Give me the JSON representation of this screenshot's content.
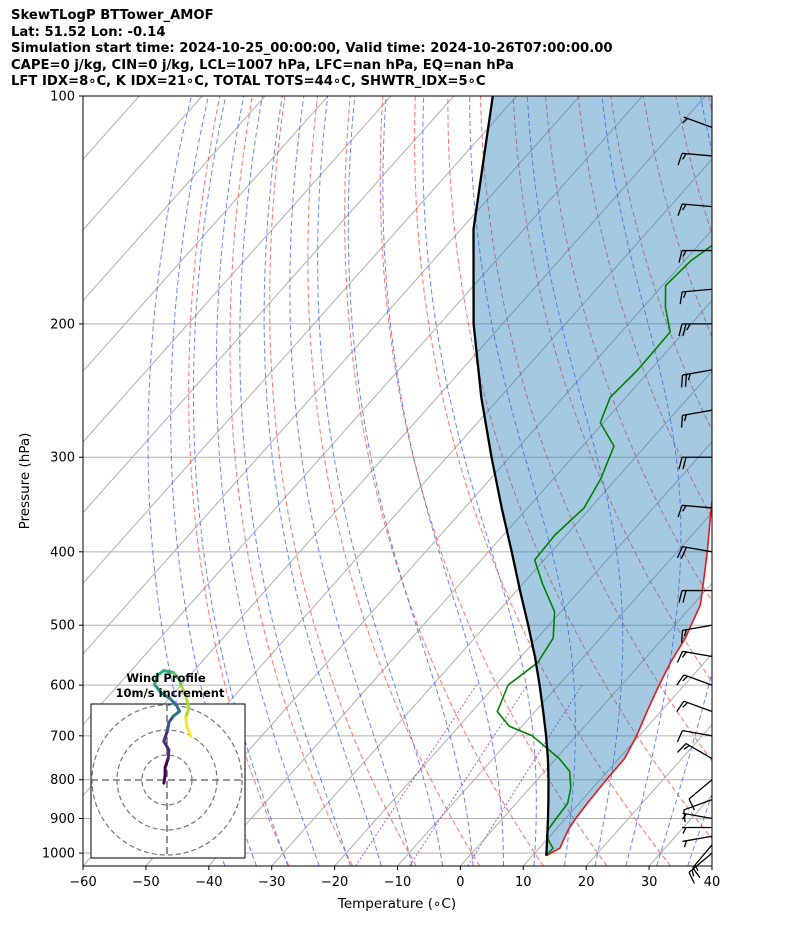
{
  "header": {
    "line1": "SkewTLogP BTTower_AMOF",
    "line2": "Lat: 51.52   Lon: -0.14",
    "line3": "Simulation start time: 2024-10-25_00:00:00, Valid time: 2024-10-26T07:00:00.00",
    "line4": "CAPE=0 j/kg, CIN=0 j/kg, LCL=1007 hPa, LFC=nan hPa, EQ=nan hPa",
    "line5": "LFT IDX=8∘C, K IDX=21∘C, TOTAL TOTS=44∘C, SHWTR_IDX=5∘C"
  },
  "chart_data": {
    "type": "line",
    "subtype": "skew-T log-P diagram",
    "xlabel": "Temperature (∘C)",
    "ylabel": "Pressure (hPa)",
    "xlim": [
      -60,
      40
    ],
    "ylim": [
      1040,
      100
    ],
    "y_scale": "log",
    "x_ticks": [
      "−60",
      "−50",
      "−40",
      "−30",
      "−20",
      "−10",
      "0",
      "10",
      "20",
      "30",
      "40"
    ],
    "y_ticks": [
      "100",
      "200",
      "300",
      "400",
      "500",
      "600",
      "700",
      "800",
      "900",
      "1000"
    ],
    "grid": true,
    "series": [
      {
        "role": "temperature",
        "color": "#e31a1c",
        "points": [
          [
            1008,
            12.2
          ],
          [
            985,
            13.3
          ],
          [
            960,
            12.7
          ],
          [
            930,
            12.0
          ],
          [
            900,
            11.6
          ],
          [
            860,
            11.3
          ],
          [
            800,
            11.0
          ],
          [
            750,
            10.9
          ],
          [
            700,
            9.6
          ],
          [
            650,
            7.8
          ],
          [
            600,
            6.0
          ],
          [
            560,
            4.6
          ],
          [
            520,
            3.5
          ],
          [
            500,
            2.6
          ],
          [
            470,
            1.2
          ],
          [
            440,
            -1.4
          ],
          [
            400,
            -5.2
          ],
          [
            350,
            -10.8
          ],
          [
            300,
            -16.8
          ],
          [
            275,
            -19.5
          ],
          [
            250,
            -19.0
          ],
          [
            232,
            -20.0
          ],
          [
            216,
            -19.5
          ],
          [
            200,
            -17.0
          ],
          [
            185,
            -17.5
          ],
          [
            175,
            -18.5
          ],
          [
            160,
            -20.5
          ],
          [
            140,
            -23.5
          ],
          [
            128,
            -26.5
          ],
          [
            115,
            -27.0
          ],
          [
            106,
            -28.5
          ],
          [
            100,
            -29.5
          ]
        ]
      },
      {
        "role": "dewpoint",
        "color": "#008000",
        "points": [
          [
            1008,
            12.2
          ],
          [
            985,
            12.2
          ],
          [
            970,
            11.0
          ],
          [
            950,
            9.5
          ],
          [
            930,
            8.8
          ],
          [
            900,
            8.5
          ],
          [
            860,
            8.2
          ],
          [
            820,
            6.5
          ],
          [
            780,
            4.0
          ],
          [
            750,
            0.5
          ],
          [
            700,
            -7.0
          ],
          [
            680,
            -12.0
          ],
          [
            650,
            -16.0
          ],
          [
            600,
            -18.0
          ],
          [
            560,
            -16.5
          ],
          [
            520,
            -17.5
          ],
          [
            480,
            -21.0
          ],
          [
            440,
            -27.0
          ],
          [
            410,
            -31.5
          ],
          [
            380,
            -31.8
          ],
          [
            350,
            -31.0
          ],
          [
            320,
            -32.5
          ],
          [
            290,
            -35.0
          ],
          [
            270,
            -40.5
          ],
          [
            250,
            -42.5
          ],
          [
            230,
            -42.0
          ],
          [
            205,
            -42.2
          ],
          [
            190,
            -46.5
          ],
          [
            178,
            -49.5
          ],
          [
            165,
            -49.0
          ],
          [
            150,
            -46.5
          ],
          [
            140,
            -45.0
          ],
          [
            125,
            -40.5
          ],
          [
            110,
            -35.0
          ],
          [
            100,
            -30.0
          ]
        ]
      },
      {
        "role": "parcel",
        "color": "#000000",
        "points": [
          [
            1008,
            12.2
          ],
          [
            950,
            9.6
          ],
          [
            900,
            7.2
          ],
          [
            850,
            4.6
          ],
          [
            800,
            1.8
          ],
          [
            750,
            -1.3
          ],
          [
            700,
            -4.8
          ],
          [
            650,
            -8.7
          ],
          [
            600,
            -13.0
          ],
          [
            550,
            -17.8
          ],
          [
            500,
            -23.3
          ],
          [
            450,
            -29.5
          ],
          [
            400,
            -36.3
          ],
          [
            350,
            -44.1
          ],
          [
            300,
            -52.9
          ],
          [
            250,
            -63.0
          ],
          [
            200,
            -74.6
          ],
          [
            150,
            -88.0
          ],
          [
            100,
            -103.8
          ]
        ]
      }
    ],
    "wind_barbs": [
      {
        "p": 1000,
        "speed": 15,
        "dir": 230
      },
      {
        "p": 975,
        "speed": 15,
        "dir": 220
      },
      {
        "p": 950,
        "speed": 5,
        "dir": 260
      },
      {
        "p": 925,
        "speed": 5,
        "dir": 270
      },
      {
        "p": 900,
        "speed": 5,
        "dir": 280
      },
      {
        "p": 850,
        "speed": 10,
        "dir": 250
      },
      {
        "p": 800,
        "speed": 10,
        "dir": 230
      },
      {
        "p": 750,
        "speed": 15,
        "dir": 300
      },
      {
        "p": 700,
        "speed": 10,
        "dir": 280
      },
      {
        "p": 650,
        "speed": 15,
        "dir": 290
      },
      {
        "p": 600,
        "speed": 15,
        "dir": 290
      },
      {
        "p": 550,
        "speed": 15,
        "dir": 280
      },
      {
        "p": 500,
        "speed": 15,
        "dir": 260
      },
      {
        "p": 450,
        "speed": 20,
        "dir": 270
      },
      {
        "p": 400,
        "speed": 20,
        "dir": 280
      },
      {
        "p": 350,
        "speed": 15,
        "dir": 275
      },
      {
        "p": 300,
        "speed": 20,
        "dir": 270
      },
      {
        "p": 260,
        "speed": 15,
        "dir": 260
      },
      {
        "p": 230,
        "speed": 25,
        "dir": 260
      },
      {
        "p": 200,
        "speed": 25,
        "dir": 270
      },
      {
        "p": 180,
        "speed": 15,
        "dir": 265
      },
      {
        "p": 160,
        "speed": 15,
        "dir": 270
      },
      {
        "p": 140,
        "speed": 15,
        "dir": 275
      },
      {
        "p": 120,
        "speed": 15,
        "dir": 275
      },
      {
        "p": 110,
        "speed": 5,
        "dir": 290
      }
    ],
    "hodograph": {
      "title_line1": "Wind Profile",
      "title_line2": "10m/s increment",
      "ring_count": 3,
      "points": [
        [
          -0.5,
          -0.5
        ],
        [
          -0.3,
          0.8
        ],
        [
          -0.3,
          2.0
        ],
        [
          0.2,
          3.5
        ],
        [
          0.3,
          4.8
        ],
        [
          -0.5,
          6.2
        ],
        [
          0.1,
          8.0
        ],
        [
          0.3,
          9.2
        ],
        [
          1.0,
          10.2
        ],
        [
          2.0,
          11.0
        ],
        [
          1.5,
          12.0
        ],
        [
          0.5,
          13.0
        ],
        [
          -1.0,
          14.0
        ],
        [
          -2.0,
          15.3
        ],
        [
          -1.5,
          16.8
        ],
        [
          -0.5,
          17.5
        ],
        [
          1.0,
          17.2
        ],
        [
          2.0,
          16.0
        ],
        [
          2.3,
          15.0
        ],
        [
          3.0,
          13.5
        ],
        [
          3.5,
          11.5
        ],
        [
          3.0,
          10.0
        ],
        [
          3.2,
          8.5
        ],
        [
          3.8,
          7.0
        ]
      ]
    }
  }
}
